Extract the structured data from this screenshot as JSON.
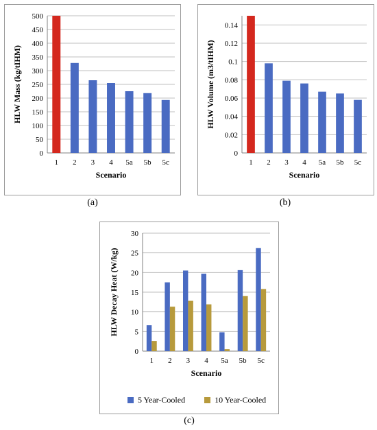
{
  "chart_data": [
    {
      "type": "bar",
      "panel_label": "(a)",
      "categories": [
        "1",
        "2",
        "3",
        "4",
        "5a",
        "5b",
        "5c"
      ],
      "values": [
        500,
        328,
        265,
        255,
        225,
        218,
        193
      ],
      "highlight_index": 0,
      "xlabel": "Scenario",
      "ylabel": "HLW Mass (kg/tIHM)",
      "ylim": [
        0,
        500
      ],
      "yticks": [
        0,
        50,
        100,
        150,
        200,
        250,
        300,
        350,
        400,
        450,
        500
      ],
      "grid": true
    },
    {
      "type": "bar",
      "panel_label": "(b)",
      "categories": [
        "1",
        "2",
        "3",
        "4",
        "5a",
        "5b",
        "5c"
      ],
      "values": [
        0.15,
        0.098,
        0.079,
        0.076,
        0.067,
        0.065,
        0.058
      ],
      "highlight_index": 0,
      "xlabel": "Scenario",
      "ylabel": "HLW Volume (m3/tIHM)",
      "ylim": [
        0,
        0.15
      ],
      "yticks": [
        "0",
        "0.02",
        "0.04",
        "0.06",
        "0.08",
        "0.1",
        "0.12",
        "0.14"
      ],
      "grid": true
    },
    {
      "type": "bar",
      "panel_label": "(c)",
      "categories": [
        "1",
        "2",
        "3",
        "4",
        "5a",
        "5b",
        "5c"
      ],
      "series": [
        {
          "name": "5 Year-Cooled",
          "values": [
            6.6,
            17.5,
            20.5,
            19.7,
            4.8,
            20.6,
            26.2
          ]
        },
        {
          "name": "10 Year-Cooled",
          "values": [
            2.6,
            11.3,
            12.8,
            11.9,
            0.5,
            14.0,
            15.8
          ]
        }
      ],
      "xlabel": "Scenario",
      "ylabel": "HLW Decay Heat (W/kg)",
      "ylim": [
        0,
        30
      ],
      "yticks": [
        0,
        5,
        10,
        15,
        20,
        25,
        30
      ],
      "grid": true,
      "legend_position": "bottom"
    }
  ],
  "colors": {
    "blue": "#4a6bc2",
    "gold": "#b79a3c",
    "highlight_red": "#d4281e",
    "grid": "#bfbfbf",
    "axis": "#808080"
  }
}
